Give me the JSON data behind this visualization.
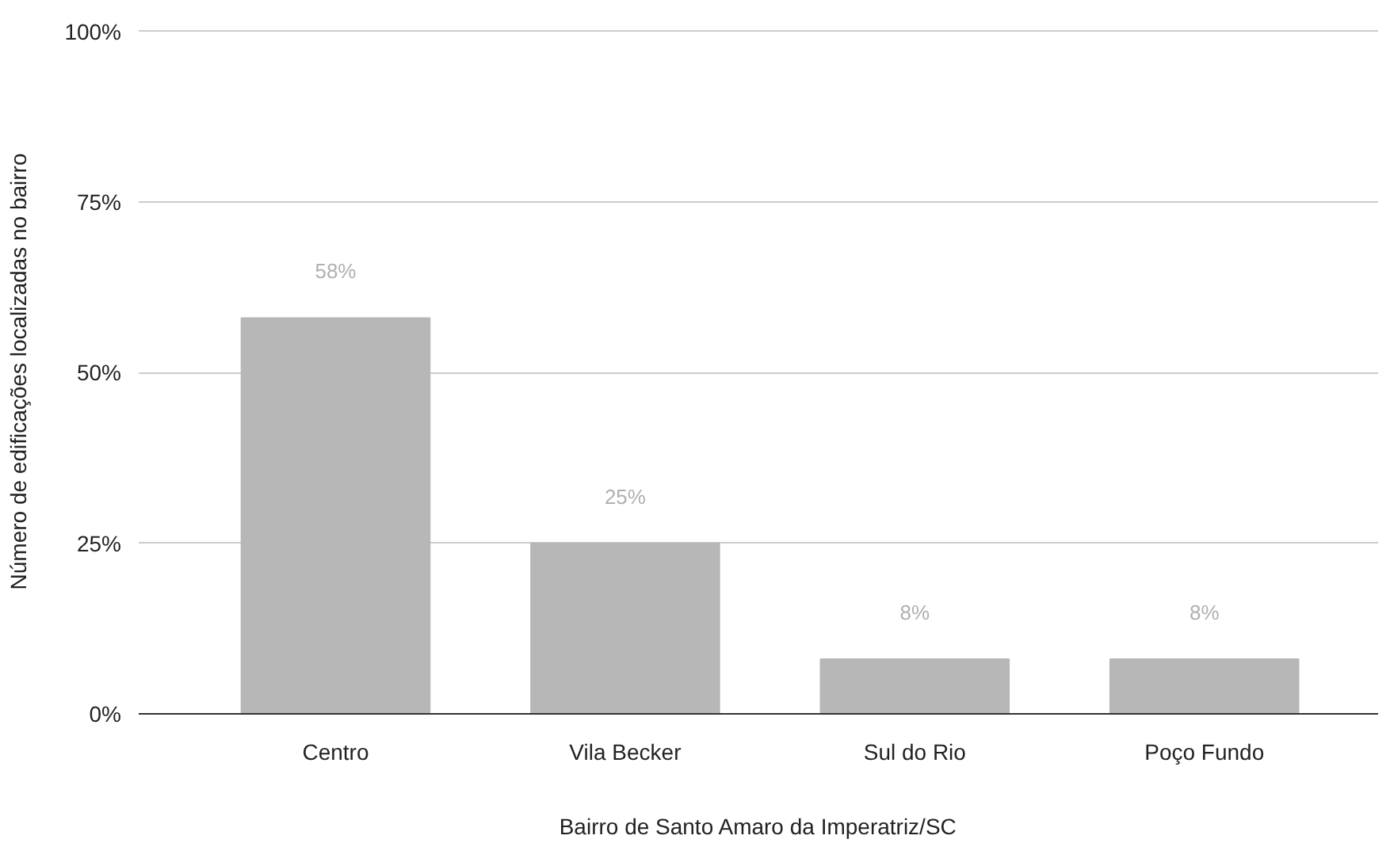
{
  "chart_data": {
    "type": "bar",
    "xlabel": "Bairro de Santo Amaro da Imperatriz/SC",
    "ylabel": "Número de edificações localizadas no bairro",
    "categories": [
      "Centro",
      "Vila Becker",
      "Sul do Rio",
      "Poço Fundo"
    ],
    "values": [
      58,
      25,
      8,
      8
    ],
    "color": "#b7b7b7",
    "value_labels": [
      "58%",
      "25%",
      "8%",
      "8%"
    ],
    "ylim": [
      0,
      100
    ],
    "yticks": [
      {
        "value": 0,
        "label": "0%"
      },
      {
        "value": 25,
        "label": "25%"
      },
      {
        "value": 50,
        "label": "50%"
      },
      {
        "value": 75,
        "label": "75%"
      },
      {
        "value": 100,
        "label": "100%"
      }
    ],
    "grid": "y"
  }
}
